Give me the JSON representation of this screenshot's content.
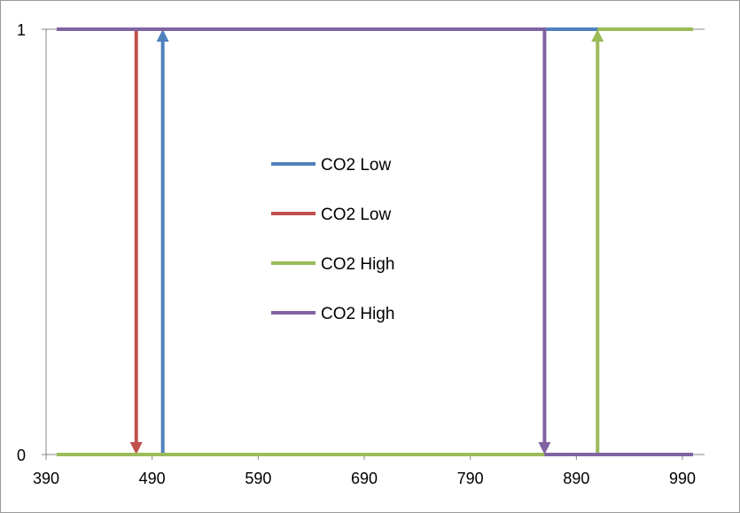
{
  "chart_data": {
    "type": "line",
    "title": "",
    "xlabel": "",
    "ylabel": "",
    "xlim": [
      390,
      1000
    ],
    "ylim": [
      0,
      1
    ],
    "x_ticks": [
      390,
      490,
      590,
      690,
      790,
      890,
      990
    ],
    "y_ticks": [
      0,
      1
    ],
    "grid": false,
    "legend_position": "center",
    "series": [
      {
        "name": "CO2 Low",
        "color": "#4f81bd",
        "points": [
          [
            400,
            0
          ],
          [
            500,
            0
          ],
          [
            500,
            1
          ],
          [
            1000,
            1
          ]
        ],
        "arrow": "up"
      },
      {
        "name": "CO2 Low",
        "color": "#c0504d",
        "points": [
          [
            400,
            1
          ],
          [
            475,
            1
          ],
          [
            475,
            0
          ],
          [
            1000,
            0
          ]
        ],
        "arrow": "down"
      },
      {
        "name": "CO2 High",
        "color": "#9bbb59",
        "points": [
          [
            400,
            0
          ],
          [
            910,
            0
          ],
          [
            910,
            1
          ],
          [
            1000,
            1
          ]
        ],
        "arrow": "up"
      },
      {
        "name": "CO2 High",
        "color": "#8064a2",
        "points": [
          [
            400,
            1
          ],
          [
            860,
            1
          ],
          [
            860,
            0
          ],
          [
            1000,
            0
          ]
        ],
        "arrow": "down"
      }
    ]
  }
}
